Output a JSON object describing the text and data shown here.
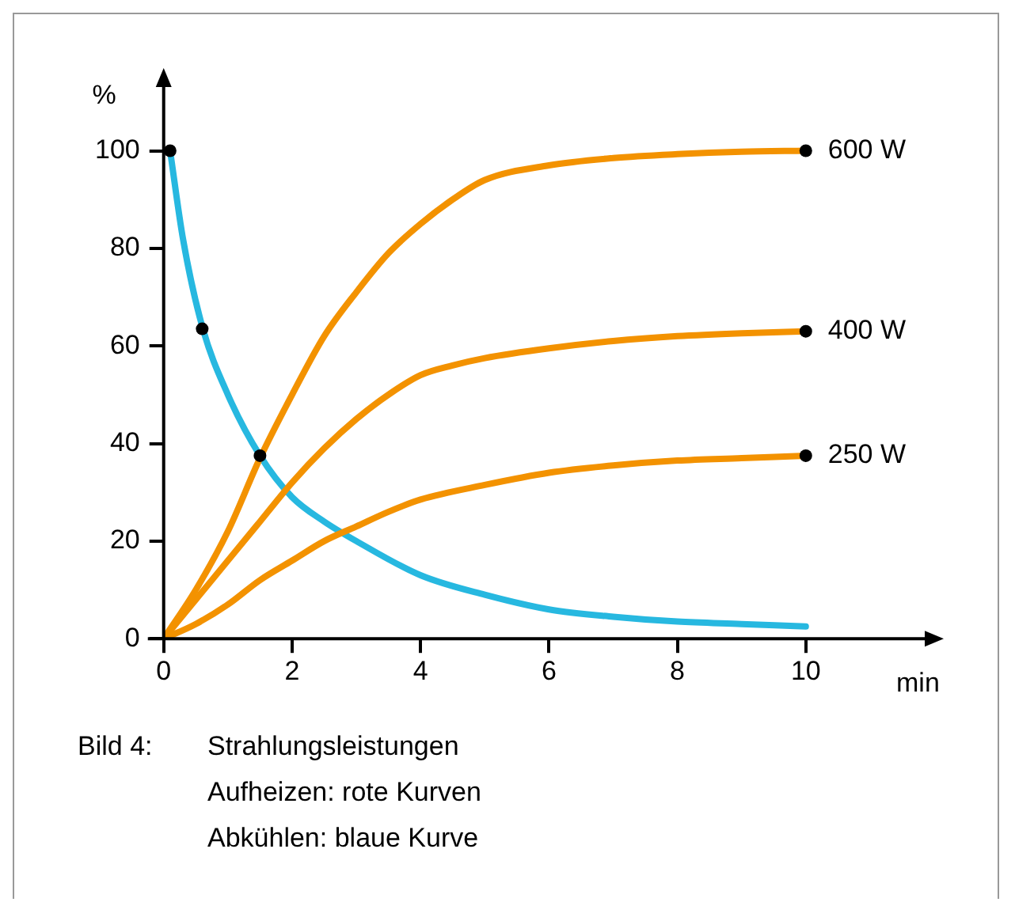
{
  "chart_data": {
    "type": "line",
    "xlabel": "min",
    "ylabel": "%",
    "xlim": [
      0,
      12
    ],
    "ylim": [
      0,
      115
    ],
    "xticks": [
      0,
      2,
      4,
      6,
      8,
      10
    ],
    "yticks": [
      0,
      20,
      40,
      60,
      80,
      100
    ],
    "grid": false,
    "legend": false,
    "line_style": "solid",
    "marker": "none",
    "annotations": [
      "Bild 4:",
      "Strahlungsleistungen",
      "Aufheizen: rote Kurven",
      "Abkühlen: blaue Kurve"
    ],
    "series": [
      {
        "name": "600 W",
        "color": "#f39200",
        "x": [
          0,
          0.5,
          1,
          1.5,
          2,
          2.5,
          3,
          3.5,
          4,
          4.5,
          5,
          6,
          7,
          8,
          9,
          10
        ],
        "values": [
          0,
          10,
          22,
          37,
          50,
          62,
          71,
          79,
          85,
          90,
          94,
          97,
          98.5,
          99.3,
          99.8,
          100
        ]
      },
      {
        "name": "400 W",
        "color": "#f39200",
        "x": [
          0,
          0.5,
          1,
          1.5,
          2,
          2.5,
          3,
          3.5,
          4,
          4.5,
          5,
          6,
          7,
          8,
          9,
          10
        ],
        "values": [
          0,
          8,
          16,
          24,
          32,
          39,
          45,
          50,
          54,
          56,
          57.5,
          59.5,
          61,
          62,
          62.6,
          63
        ]
      },
      {
        "name": "250 W",
        "color": "#f39200",
        "x": [
          0,
          0.5,
          1,
          1.5,
          2,
          2.5,
          3,
          3.5,
          4,
          5,
          6,
          7,
          8,
          9,
          10
        ],
        "values": [
          0,
          3,
          7,
          12,
          16,
          20,
          23,
          26,
          28.5,
          31.5,
          34,
          35.5,
          36.5,
          37,
          37.5
        ]
      },
      {
        "color": "#27b8e0",
        "x": [
          0.1,
          0.3,
          0.6,
          1,
          1.5,
          2,
          2.5,
          3,
          4,
          5,
          6,
          7,
          8,
          9,
          10
        ],
        "values": [
          100,
          82,
          64,
          50,
          37.5,
          29,
          24,
          20,
          13,
          9,
          6,
          4.5,
          3.5,
          3,
          2.5
        ]
      },
      {
        "type": "scatter",
        "marker": "circle",
        "color": "#000000",
        "x": [
          0.1,
          0.6,
          1.5,
          10,
          10,
          10
        ],
        "values": [
          100,
          63.5,
          37.5,
          100,
          63,
          37.5
        ]
      }
    ]
  }
}
